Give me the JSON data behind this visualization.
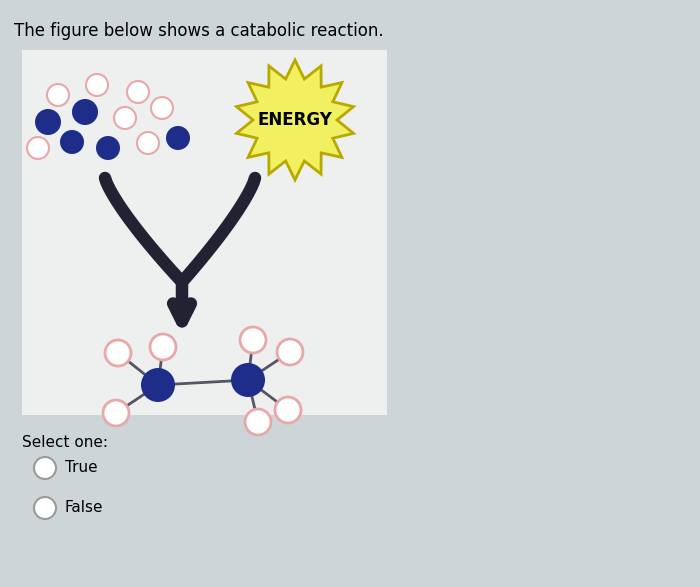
{
  "title": "The figure below shows a catabolic reaction.",
  "title_fontsize": 12,
  "bg_color": "#cdd5d8",
  "box_bg": "#eef0f0",
  "energy_bg": "#f0f060",
  "energy_text": "ENERGY",
  "select_label": "Select one:",
  "option1": "True",
  "option2": "False",
  "dark_blue": "#1e2d8a",
  "light_pink": "#e8a8a8",
  "arrow_color": "#222233",
  "bond_color": "#555566"
}
